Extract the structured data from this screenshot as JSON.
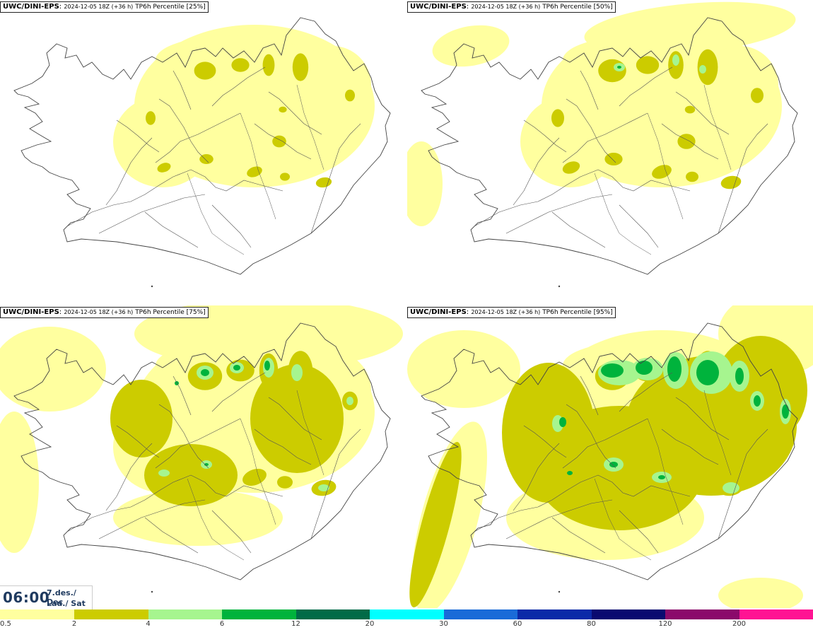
{
  "colors": {
    "ocean": "#ffffff",
    "land": "#ffffff",
    "coast": "#444444",
    "band_0_5": "#ffff9f",
    "band_2": "#cccc00",
    "band_4": "#a6f58f",
    "band_6": "#00b33c"
  },
  "panels": [
    {
      "source": "UWC/DINI-EPS",
      "run": "2024-12-05 18Z (+36 h)",
      "product": "TP6h Percentile [25%]",
      "level": 1
    },
    {
      "source": "UWC/DINI-EPS",
      "run": "2024-12-05 18Z (+36 h)",
      "product": "TP6h Percentile [50%]",
      "level": 2
    },
    {
      "source": "UWC/DINI-EPS",
      "run": "2024-12-05 18Z (+36 h)",
      "product": "TP6h Percentile [75%]",
      "level": 3
    },
    {
      "source": "UWC/DINI-EPS",
      "run": "2024-12-05 18Z (+36 h)",
      "product": "TP6h Percentile [95%]",
      "level": 4
    }
  ],
  "valid_time": {
    "time": "06:00",
    "date_line1": "7.des./ Dec",
    "date_line2": "Lau./ Sat"
  },
  "colorbar": {
    "labels": [
      "0.5",
      "2",
      "4",
      "6",
      "12",
      "20",
      "30",
      "60",
      "80",
      "120",
      "200"
    ],
    "colors": [
      "#ffff9f",
      "#cccc00",
      "#a6f58f",
      "#00b33c",
      "#006b47",
      "#00ffff",
      "#1a6bd8",
      "#0b2aa8",
      "#0a0a70",
      "#8b0a6b",
      "#ff1493",
      "#ff1a1a"
    ]
  }
}
